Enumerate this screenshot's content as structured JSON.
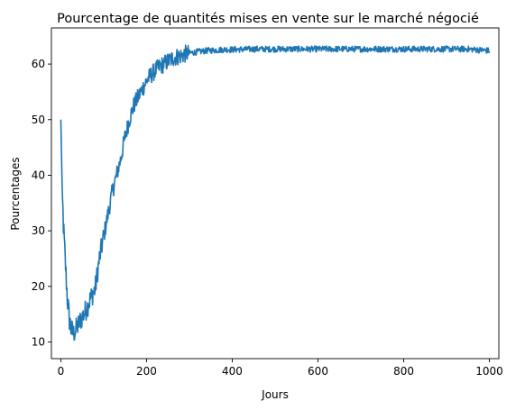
{
  "chart_data": {
    "type": "line",
    "title": "Pourcentage de quantités mises en vente sur le marché négocié",
    "xlabel": "Jours",
    "ylabel": "Pourcentages",
    "xlim": [
      -22,
      1022
    ],
    "ylim": [
      7,
      66.5
    ],
    "x_ticks": [
      0,
      200,
      400,
      600,
      800,
      1000
    ],
    "y_ticks": [
      10,
      20,
      30,
      40,
      50,
      60
    ],
    "grid": false,
    "legend": "none",
    "series_color": "#1f77b4",
    "series": [
      {
        "x": [
          0,
          3,
          6,
          10,
          15,
          20,
          25,
          30,
          40,
          50,
          60,
          70,
          80,
          90,
          100,
          110,
          120,
          130,
          140,
          150,
          160,
          170,
          180,
          190,
          200,
          210,
          220,
          230,
          240,
          250,
          260,
          270,
          280,
          290,
          300,
          320,
          340,
          360,
          380,
          400,
          450,
          500,
          550,
          600,
          650,
          700,
          750,
          800,
          850,
          900,
          950,
          1000
        ],
        "values": [
          50,
          38,
          31,
          25,
          18,
          14,
          12,
          11.5,
          13,
          14.5,
          16,
          18,
          19.5,
          25,
          29,
          33,
          37,
          40,
          43,
          47,
          50,
          52.5,
          54,
          55.5,
          57,
          58,
          58.8,
          59.5,
          60,
          60.5,
          61,
          61.3,
          61.5,
          61.8,
          62,
          62.2,
          62.4,
          62.5,
          62.6,
          62.6,
          62.7,
          62.7,
          62.7,
          62.7,
          62.7,
          62.7,
          62.7,
          62.7,
          62.7,
          62.7,
          62.7,
          62.4
        ]
      }
    ]
  }
}
